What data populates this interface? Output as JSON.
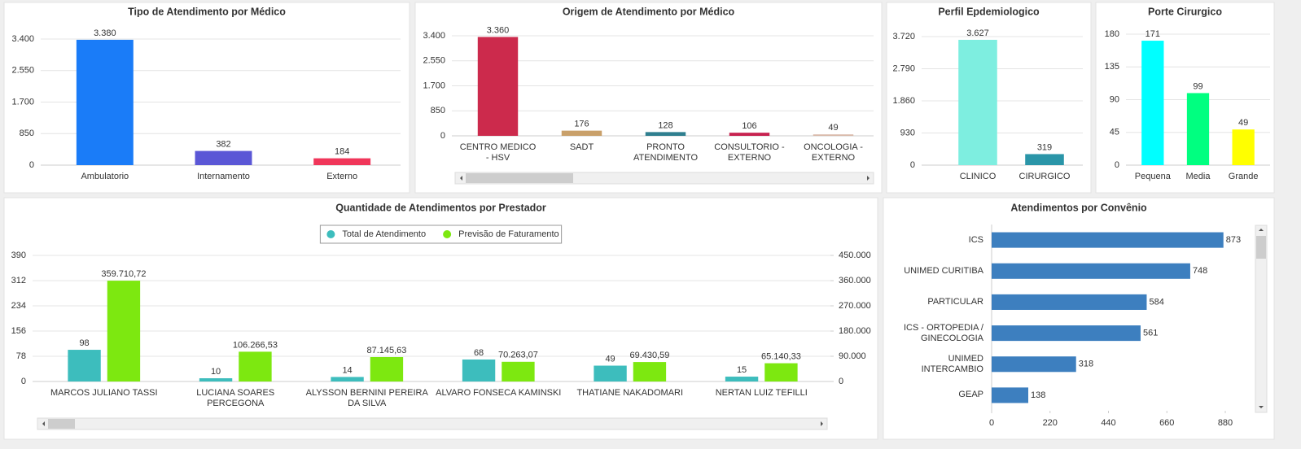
{
  "chart_data": [
    {
      "type": "bar",
      "title": "Tipo de Atendimento por Médico",
      "categories": [
        "Ambulatorio",
        "Internamento",
        "Externo"
      ],
      "values": [
        3380,
        382,
        184
      ],
      "value_labels": [
        "3.380",
        "382",
        "184"
      ],
      "colors": [
        "#1a7cf8",
        "#5b57d6",
        "#f0365a"
      ],
      "ylim": [
        0,
        3400
      ],
      "yticks": [
        0,
        850,
        {
          "value": 1700,
          "label": "1.700"
        },
        {
          "value": 2550,
          "label": "2.550"
        },
        {
          "value": 3400,
          "label": "3.400"
        }
      ],
      "grid": true
    },
    {
      "type": "bar",
      "title": "Origem de Atendimento por Médico",
      "categories": [
        "CENTRO MEDICO - HSV",
        "SADT",
        "PRONTO ATENDIMENTO",
        "CONSULTORIO - EXTERNO",
        "ONCOLOGIA - EXTERNO"
      ],
      "values": [
        3360,
        176,
        128,
        106,
        49
      ],
      "value_labels": [
        "3.360",
        "176",
        "128",
        "106",
        "49"
      ],
      "colors": [
        "#cc2a4c",
        "#c9a06a",
        "#2f7f8f",
        "#c7224f",
        "#d9b9a9"
      ],
      "ylim": [
        0,
        3400
      ],
      "yticks": [
        0,
        850,
        {
          "value": 1700,
          "label": "1.700"
        },
        {
          "value": 2550,
          "label": "2.550"
        },
        {
          "value": 3400,
          "label": "3.400"
        }
      ],
      "grid": true
    },
    {
      "type": "bar",
      "title": "Perfil Epdemiologico",
      "categories": [
        "CLINICO",
        "CIRURGICO"
      ],
      "values": [
        3627,
        319
      ],
      "value_labels": [
        "3.627",
        "319"
      ],
      "colors": [
        "#7eeee0",
        "#2a95a8"
      ],
      "ylim": [
        0,
        3720
      ],
      "yticks": [
        0,
        930,
        {
          "value": 1860,
          "label": "1.860"
        },
        {
          "value": 2790,
          "label": "2.790"
        },
        {
          "value": 3720,
          "label": "3.720"
        }
      ],
      "grid": true
    },
    {
      "type": "bar",
      "title": "Porte Cirurgico",
      "categories": [
        "Pequena",
        "Media",
        "Grande"
      ],
      "values": [
        171,
        99,
        49
      ],
      "colors": [
        "#00ffff",
        "#00ff80",
        "#ffff00"
      ],
      "ylim": [
        0,
        180
      ],
      "yticks": [
        0,
        45,
        90,
        135,
        180
      ],
      "grid": true
    },
    {
      "type": "bar",
      "title": "Quantidade de Atendimentos por Prestador",
      "categories": [
        "MARCOS JULIANO TASSI",
        "LUCIANA SOARES PERCEGONA",
        "ALYSSON BERNINI PEREIRA DA SILVA",
        "ALVARO FONSECA KAMINSKI",
        "THATIANE NAKADOMARI",
        "NERTAN LUIZ TEFILLI"
      ],
      "series": [
        {
          "name": "Total de Atendimento",
          "color": "#3dbdbd",
          "values": [
            98,
            10,
            14,
            68,
            49,
            15
          ]
        },
        {
          "name": "Previsão de Faturamento",
          "color": "#7de810",
          "axis": "y2",
          "values": [
            359710.72,
            106266.53,
            87145.63,
            70263.07,
            69430.59,
            65140.33
          ],
          "value_labels": [
            "359.710,72",
            "106.266,53",
            "87.145,63",
            "70.263,07",
            "69.430,59",
            "65.140,33"
          ]
        }
      ],
      "ylim": [
        0,
        390
      ],
      "yticks": [
        0,
        78,
        156,
        234,
        312,
        390
      ],
      "y2lim": [
        0,
        450000
      ],
      "y2ticks": [
        0,
        {
          "value": 90000,
          "label": "90.000"
        },
        {
          "value": 180000,
          "label": "180.000"
        },
        {
          "value": 270000,
          "label": "270.000"
        },
        {
          "value": 360000,
          "label": "360.000"
        },
        {
          "value": 450000,
          "label": "450.000"
        }
      ],
      "grid": true,
      "legend": "top"
    },
    {
      "type": "barh",
      "title": "Atendimentos por Convênio",
      "categories": [
        "ICS",
        "UNIMED CURITIBA",
        "PARTICULAR",
        "ICS - ORTOPEDIA / GINECOLOGIA",
        "UNIMED INTERCAMBIO",
        "GEAP"
      ],
      "values": [
        873,
        748,
        584,
        561,
        318,
        138
      ],
      "color": "#3d7fbf",
      "xlim": [
        0,
        880
      ],
      "xticks": [
        0,
        220,
        440,
        660,
        880
      ],
      "grid": false
    }
  ]
}
